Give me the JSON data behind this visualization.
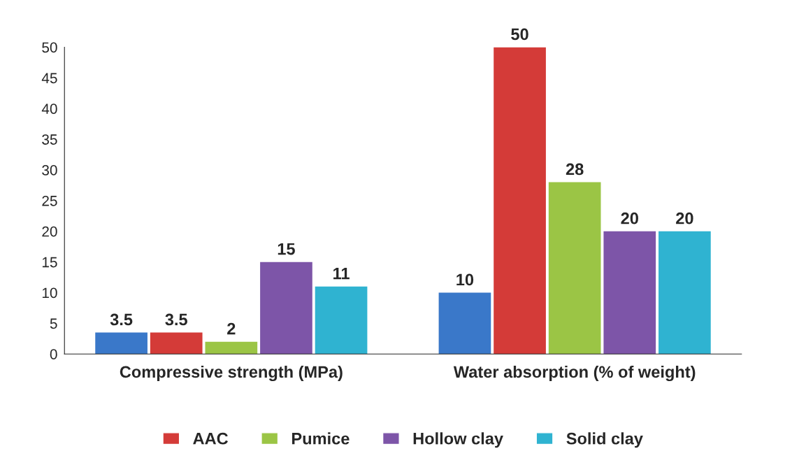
{
  "chart_data": {
    "type": "bar",
    "categories": [
      "Compressive strength (MPa)",
      "Water absorption (% of weight)"
    ],
    "series": [
      {
        "color": "#3a78c9",
        "values": [
          3.5,
          10
        ]
      },
      {
        "name": "AAC",
        "color": "#d43b38",
        "values": [
          3.5,
          50
        ]
      },
      {
        "name": "Pumice",
        "color": "#9bc545",
        "values": [
          2,
          28
        ]
      },
      {
        "name": "Hollow clay",
        "color": "#7d55a8",
        "values": [
          15,
          20
        ]
      },
      {
        "name": "Solid clay",
        "color": "#2fb3d1",
        "values": [
          11,
          20
        ]
      }
    ],
    "ylim": [
      0,
      50
    ],
    "yticks": [
      0,
      5,
      10,
      15,
      20,
      25,
      30,
      35,
      40,
      45,
      50
    ],
    "data_labels": true,
    "grid": false,
    "legend": "bottom"
  }
}
